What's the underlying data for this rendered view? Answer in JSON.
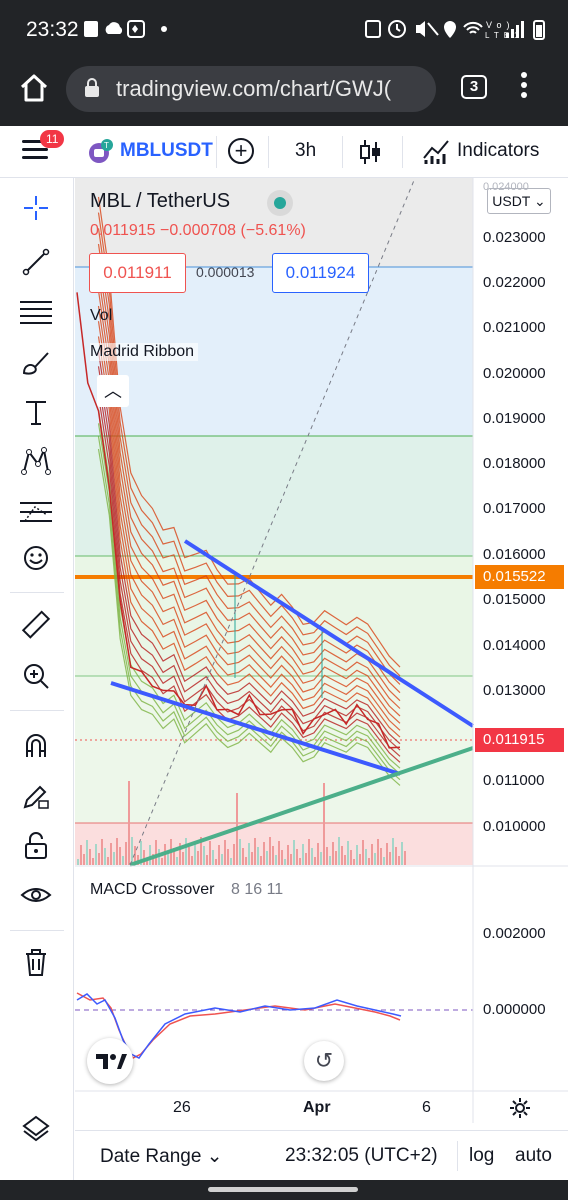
{
  "status": {
    "time": "23:32",
    "left_icons": [
      "puzzle-icon",
      "cloud-icon",
      "kucoin-icon",
      "dot-icon"
    ],
    "right_icons": "⌂ ⏰ ✕ ◉ ᯤ Vo) LTE1 ▮"
  },
  "browser": {
    "url": "tradingview.com/chart/GWJ(",
    "tab_count": "3"
  },
  "toolbar": {
    "notifications": "11",
    "symbol": "MBLUSDT",
    "interval": "3h",
    "indicators_label": "Indicators"
  },
  "legend": {
    "title": "MBL / TetherUS",
    "values": "0.011915  −0.000708 (−5.61%)",
    "bid": "0.011911",
    "spread": "0.000013",
    "ask": "0.011924",
    "vol_label": "Vol",
    "madrid_label": "Madrid Ribbon",
    "currency": "USDT ⌄"
  },
  "price_axis": {
    "labels": [
      "0.023000",
      "0.022000",
      "0.021000",
      "0.020000",
      "0.019000",
      "0.018000",
      "0.017000",
      "0.016000",
      "0.015000",
      "0.014000",
      "0.013000",
      "0.011000",
      "0.010000"
    ],
    "tag_orange": "0.015522",
    "tag_red": "0.011915",
    "top_partial": "0.024000"
  },
  "macd": {
    "title": "MACD Crossover",
    "params": "8 16 11",
    "labels": [
      "0.002000",
      "0.000000"
    ]
  },
  "time_axis": {
    "labels": [
      "26",
      "Apr",
      "6"
    ]
  },
  "bottom": {
    "date_range": "Date Range ⌄",
    "clock": "23:32:05 (UTC+2)",
    "log": "log",
    "auto": "auto"
  },
  "colors": {
    "accent": "#2962ff",
    "down": "#ef5350",
    "up": "#26a69a",
    "orange": "#f57c00",
    "trendline": "#3d5afe"
  },
  "chart_data": {
    "type": "line",
    "title": "MBL / TetherUS",
    "ylim": [
      0.0095,
      0.024
    ],
    "horizontal_levels": [
      0.0225,
      0.0186,
      0.016,
      0.015522,
      0.0133,
      0.01
    ],
    "last_price": 0.011915,
    "price_series": [
      0.0215,
      0.0198,
      0.019,
      0.0176,
      0.015,
      0.0138,
      0.0135,
      0.0134,
      0.0131,
      0.0133,
      0.0128,
      0.013,
      0.0132,
      0.0129,
      0.0127,
      0.0128,
      0.013,
      0.0128,
      0.0126,
      0.0129,
      0.0127,
      0.0124,
      0.0125,
      0.0128,
      0.0127,
      0.0126,
      0.0128,
      0.0127,
      0.0124,
      0.0121,
      0.0119
    ]
  }
}
